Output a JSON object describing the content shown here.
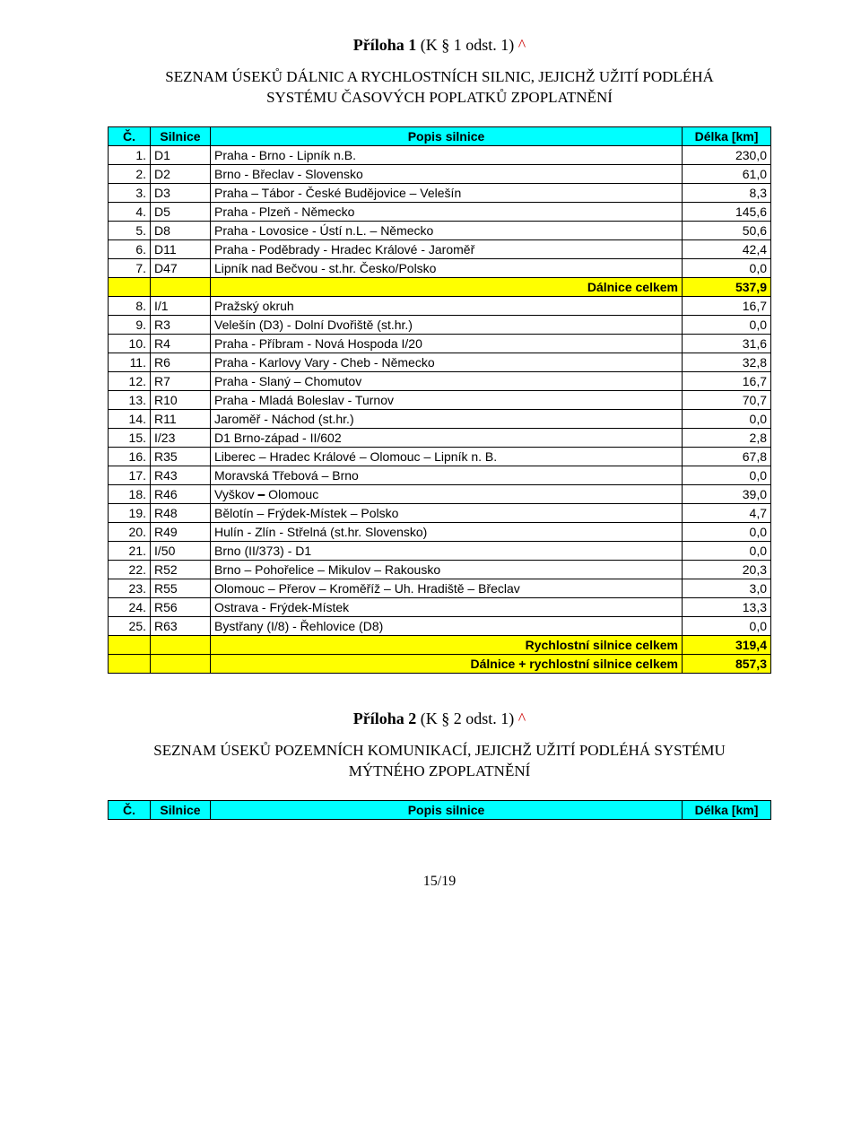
{
  "annex1": {
    "title_prefix": "Příloha 1",
    "title_paren": " (K § 1 odst. 1) ",
    "caret": "^",
    "heading_line1": "SEZNAM ÚSEKŮ DÁLNIC A RYCHLOSTNÍCH SILNIC, JEJICHŽ UŽITÍ PODLÉHÁ",
    "heading_line2": "SYSTÉMU ČASOVÝCH POPLATKŮ ZPOPLATNĚNÍ"
  },
  "table1": {
    "header": {
      "num": "Č.",
      "code": "Silnice",
      "desc": "Popis silnice",
      "len": "Délka [km]"
    },
    "rows": [
      {
        "num": "1.",
        "code": "D1",
        "desc": "Praha - Brno - Lipník n.B.",
        "len": "230,0"
      },
      {
        "num": "2.",
        "code": "D2",
        "desc": "Brno - Břeclav - Slovensko",
        "len": "61,0"
      },
      {
        "num": "3.",
        "code": "D3",
        "desc": "Praha – Tábor - České Budějovice – Velešín",
        "len": "8,3"
      },
      {
        "num": "4.",
        "code": "D5",
        "desc": "Praha - Plzeň - Německo",
        "len": "145,6"
      },
      {
        "num": "5.",
        "code": "D8",
        "desc": "Praha - Lovosice - Ústí n.L. – Německo",
        "len": "50,6"
      },
      {
        "num": "6.",
        "code": "D11",
        "desc": "Praha - Poděbrady - Hradec Králové - Jaroměř",
        "len": "42,4"
      },
      {
        "num": "7.",
        "code": "D47",
        "desc": "Lipník nad Bečvou - st.hr. Česko/Polsko",
        "len": "0,0"
      }
    ],
    "subtotal1": {
      "desc": "Dálnice celkem",
      "len": "537,9"
    },
    "rows2": [
      {
        "num": "8.",
        "code": "I/1",
        "desc": "Pražský okruh",
        "len": "16,7"
      },
      {
        "num": "9.",
        "code": "R3",
        "desc": "Velešín (D3) - Dolní Dvořiště (st.hr.)",
        "len": "0,0"
      },
      {
        "num": "10.",
        "code": "R4",
        "desc": "Praha - Příbram - Nová Hospoda I/20",
        "len": "31,6"
      },
      {
        "num": "11.",
        "code": "R6",
        "desc": "Praha - Karlovy Vary - Cheb - Německo",
        "len": "32,8"
      },
      {
        "num": "12.",
        "code": "R7",
        "desc": "Praha - Slaný – Chomutov",
        "len": "16,7"
      },
      {
        "num": "13.",
        "code": "R10",
        "desc": "Praha - Mladá Boleslav - Turnov",
        "len": "70,7"
      },
      {
        "num": "14.",
        "code": "R11",
        "desc": "Jaroměř - Náchod (st.hr.)",
        "len": "0,0"
      },
      {
        "num": "15.",
        "code": "I/23",
        "desc": "D1 Brno-západ - II/602",
        "len": "2,8"
      },
      {
        "num": "16.",
        "code": "R35",
        "desc": "Liberec – Hradec Králové – Olomouc – Lipník n. B.",
        "len": "67,8"
      },
      {
        "num": "17.",
        "code": "R43",
        "desc": "Moravská Třebová – Brno",
        "len": "0,0"
      },
      {
        "num": "18.",
        "code": "R46",
        "desc_parts": [
          "Vyškov ",
          "–",
          " Olomouc"
        ],
        "len": "39,0"
      },
      {
        "num": "19.",
        "code": "R48",
        "desc": "Bělotín – Frýdek-Místek – Polsko",
        "len": "4,7"
      },
      {
        "num": "20.",
        "code": "R49",
        "desc": "Hulín - Zlín - Střelná (st.hr. Slovensko)",
        "len": "0,0"
      },
      {
        "num": "21.",
        "code": "I/50",
        "desc": "Brno (II/373) - D1",
        "len": "0,0"
      },
      {
        "num": "22.",
        "code": "R52",
        "desc": "Brno – Pohořelice – Mikulov – Rakousko",
        "len": "20,3"
      },
      {
        "num": "23.",
        "code": "R55",
        "desc": "Olomouc – Přerov – Kroměříž – Uh. Hradiště – Břeclav",
        "len": "3,0"
      },
      {
        "num": "24.",
        "code": "R56",
        "desc": "Ostrava - Frýdek-Místek",
        "len": "13,3"
      },
      {
        "num": "25.",
        "code": "R63",
        "desc": "Bystřany (I/8) - Řehlovice (D8)",
        "len": "0,0"
      }
    ],
    "subtotal2": {
      "desc": "Rychlostní silnice celkem",
      "len": "319,4"
    },
    "total": {
      "desc": "Dálnice + rychlostní silnice celkem",
      "len": "857,3"
    }
  },
  "annex2": {
    "title_prefix": "Příloha 2",
    "title_paren": " (K § 2 odst. 1) ",
    "caret": "^",
    "heading_line1": "SEZNAM ÚSEKŮ POZEMNÍCH KOMUNIKACÍ, JEJICHŽ UŽITÍ PODLÉHÁ SYSTÉMU",
    "heading_line2": "MÝTNÉHO ZPOPLATNĚNÍ"
  },
  "table2": {
    "header": {
      "num": "Č.",
      "code": "Silnice",
      "desc": "Popis silnice",
      "len": "Délka [km]"
    }
  },
  "page_number": "15/19",
  "colors": {
    "header_bg": "#00ffff",
    "highlight_bg": "#ffff00",
    "caret": "#cc0000",
    "border": "#000000",
    "background": "#ffffff"
  }
}
